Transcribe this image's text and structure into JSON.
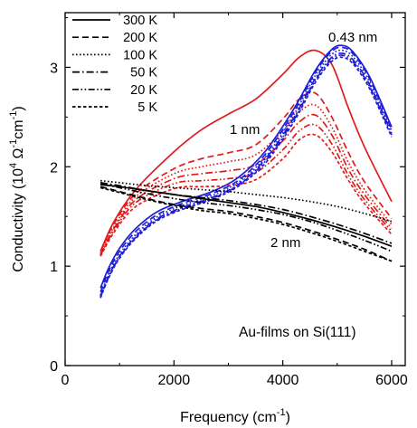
{
  "chart_data": {
    "type": "line",
    "xlabel_prefix": "Frequency (cm",
    "xlabel_exp": "-1",
    "xlabel_suffix": ")",
    "ylabel_main": "Conductivity (10",
    "ylabel_exp1": "4",
    "ylabel_mid": " Ω",
    "ylabel_exp2": "-1",
    "ylabel_cm": "cm",
    "ylabel_exp3": "-1",
    "ylabel_suffix": ")",
    "xlim": [
      0,
      6250
    ],
    "ylim": [
      0,
      3.55
    ],
    "xticks": [
      0,
      2000,
      4000,
      6000
    ],
    "yticks": [
      0,
      1,
      2,
      3
    ],
    "legend_position": "top-left",
    "legend": [
      {
        "label": "300 K",
        "dash": "solid"
      },
      {
        "label": "200 K",
        "dash": "dash"
      },
      {
        "label": "100 K",
        "dash": "dot"
      },
      {
        "label": "50 K",
        "dash": "dashdot"
      },
      {
        "label": "20 K",
        "dash": "dashdotdot"
      },
      {
        "label": "5 K",
        "dash": "shortdash"
      }
    ],
    "annotations": {
      "thick": "0.43 nm",
      "mid": "1 nm",
      "thin": "2 nm",
      "sample": "Au-films on Si(111)"
    },
    "colors": {
      "film_043nm": "#1f1fd6",
      "film_1nm": "#e01b1b",
      "film_2nm": "#000000"
    },
    "series": [
      {
        "name": "1 nm 300 K",
        "color": "#e01b1b",
        "dash": "solid",
        "x": [
          650,
          900,
          1300,
          2000,
          2500,
          3000,
          3500,
          4000,
          4300,
          4600,
          4900,
          5200,
          5500,
          6000
        ],
        "y": [
          1.15,
          1.45,
          1.77,
          2.15,
          2.37,
          2.53,
          2.68,
          2.93,
          3.1,
          3.17,
          3.03,
          2.6,
          2.2,
          1.65
        ]
      },
      {
        "name": "1 nm 200 K",
        "color": "#e01b1b",
        "dash": "dash",
        "x": [
          650,
          900,
          1300,
          2000,
          2500,
          3000,
          3500,
          4000,
          4300,
          4600,
          4900,
          5200,
          5500,
          6000
        ],
        "y": [
          1.15,
          1.43,
          1.73,
          1.98,
          2.08,
          2.14,
          2.22,
          2.48,
          2.68,
          2.74,
          2.5,
          2.15,
          1.85,
          1.48
        ]
      },
      {
        "name": "1 nm 100 K",
        "color": "#e01b1b",
        "dash": "dot",
        "x": [
          650,
          900,
          1300,
          2000,
          2500,
          3000,
          3500,
          4000,
          4300,
          4600,
          4900,
          5200,
          5500,
          6000
        ],
        "y": [
          1.13,
          1.4,
          1.7,
          1.93,
          2.0,
          2.05,
          2.12,
          2.36,
          2.55,
          2.62,
          2.4,
          2.05,
          1.77,
          1.42
        ]
      },
      {
        "name": "1 nm 50 K",
        "color": "#e01b1b",
        "dash": "dashdot",
        "x": [
          650,
          900,
          1300,
          2000,
          2500,
          3000,
          3500,
          4000,
          4300,
          4600,
          4900,
          5200,
          5500,
          6000
        ],
        "y": [
          1.12,
          1.38,
          1.67,
          1.88,
          1.93,
          1.96,
          2.02,
          2.26,
          2.45,
          2.52,
          2.32,
          1.98,
          1.72,
          1.38
        ]
      },
      {
        "name": "1 nm 20 K",
        "color": "#e01b1b",
        "dash": "dashdotdot",
        "x": [
          650,
          900,
          1300,
          2000,
          2500,
          3000,
          3500,
          4000,
          4300,
          4600,
          4900,
          5200,
          5500,
          6000
        ],
        "y": [
          1.11,
          1.36,
          1.64,
          1.83,
          1.86,
          1.88,
          1.94,
          2.17,
          2.36,
          2.42,
          2.23,
          1.92,
          1.67,
          1.35
        ]
      },
      {
        "name": "1 nm 5 K",
        "color": "#e01b1b",
        "dash": "shortdash",
        "x": [
          650,
          900,
          1300,
          2000,
          2500,
          3000,
          3500,
          4000,
          4300,
          4600,
          4900,
          5200,
          5500,
          6000
        ],
        "y": [
          1.1,
          1.34,
          1.6,
          1.78,
          1.8,
          1.81,
          1.87,
          2.08,
          2.27,
          2.32,
          2.15,
          1.87,
          1.63,
          1.32
        ]
      },
      {
        "name": "0.43 nm 300 K",
        "color": "#1f1fd6",
        "dash": "solid",
        "x": [
          650,
          800,
          1000,
          1300,
          1700,
          2200,
          2700,
          3200,
          3700,
          4200,
          4600,
          4900,
          5100,
          5300,
          5600,
          6000
        ],
        "y": [
          0.78,
          0.98,
          1.18,
          1.38,
          1.55,
          1.66,
          1.75,
          1.9,
          2.17,
          2.58,
          2.97,
          3.18,
          3.22,
          3.15,
          2.9,
          2.4
        ]
      },
      {
        "name": "0.43 nm 200 K",
        "color": "#1f1fd6",
        "dash": "dash",
        "x": [
          650,
          800,
          1000,
          1300,
          1700,
          2200,
          2700,
          3200,
          3700,
          4200,
          4600,
          4900,
          5100,
          5300,
          5600,
          6000
        ],
        "y": [
          0.74,
          0.95,
          1.15,
          1.35,
          1.52,
          1.64,
          1.73,
          1.87,
          2.14,
          2.55,
          2.95,
          3.16,
          3.2,
          3.13,
          2.88,
          2.38
        ]
      },
      {
        "name": "0.43 nm 100 K",
        "color": "#1f1fd6",
        "dash": "dot",
        "x": [
          650,
          800,
          1000,
          1300,
          1700,
          2200,
          2700,
          3200,
          3700,
          4200,
          4600,
          4900,
          5100,
          5300,
          5600,
          6000
        ],
        "y": [
          0.71,
          0.92,
          1.12,
          1.32,
          1.5,
          1.62,
          1.71,
          1.85,
          2.11,
          2.52,
          2.92,
          3.13,
          3.17,
          3.1,
          2.85,
          2.36
        ]
      },
      {
        "name": "0.43 nm 50 K",
        "color": "#1f1fd6",
        "dash": "dashdot",
        "x": [
          650,
          800,
          1000,
          1300,
          1700,
          2200,
          2700,
          3200,
          3700,
          4200,
          4600,
          4900,
          5100,
          5300,
          5600,
          6000
        ],
        "y": [
          0.7,
          0.9,
          1.1,
          1.3,
          1.48,
          1.6,
          1.69,
          1.83,
          2.09,
          2.49,
          2.89,
          3.1,
          3.14,
          3.07,
          2.82,
          2.34
        ]
      },
      {
        "name": "0.43 nm 20 K",
        "color": "#1f1fd6",
        "dash": "dashdotdot",
        "x": [
          650,
          800,
          1000,
          1300,
          1700,
          2200,
          2700,
          3200,
          3700,
          4200,
          4600,
          4900,
          5100,
          5300,
          5600,
          6000
        ],
        "y": [
          0.69,
          0.89,
          1.09,
          1.29,
          1.47,
          1.59,
          1.68,
          1.82,
          2.07,
          2.47,
          2.87,
          3.08,
          3.12,
          3.05,
          2.8,
          2.32
        ]
      },
      {
        "name": "0.43 nm 5 K",
        "color": "#1f1fd6",
        "dash": "shortdash",
        "x": [
          650,
          800,
          1000,
          1300,
          1700,
          2200,
          2700,
          3200,
          3700,
          4200,
          4600,
          4900,
          5100,
          5300,
          5600,
          6000
        ],
        "y": [
          0.68,
          0.88,
          1.08,
          1.28,
          1.46,
          1.58,
          1.67,
          1.81,
          2.05,
          2.45,
          2.85,
          3.06,
          3.1,
          3.03,
          2.78,
          2.3
        ]
      },
      {
        "name": "2 nm 300 K",
        "color": "#000000",
        "dash": "solid",
        "x": [
          650,
          1000,
          1500,
          2000,
          2500,
          3000,
          3500,
          4000,
          4500,
          5000,
          5500,
          6000
        ],
        "y": [
          1.82,
          1.8,
          1.76,
          1.72,
          1.68,
          1.64,
          1.6,
          1.54,
          1.47,
          1.39,
          1.3,
          1.2
        ]
      },
      {
        "name": "2 nm 200 K",
        "color": "#000000",
        "dash": "dash",
        "x": [
          650,
          1000,
          1500,
          2000,
          2500,
          3000,
          3500,
          4000,
          4500,
          5000,
          5500,
          6000
        ],
        "y": [
          1.8,
          1.75,
          1.68,
          1.62,
          1.58,
          1.55,
          1.5,
          1.44,
          1.36,
          1.27,
          1.17,
          1.05
        ]
      },
      {
        "name": "2 nm 100 K",
        "color": "#000000",
        "dash": "dot",
        "x": [
          650,
          1000,
          1500,
          2000,
          2500,
          3000,
          3500,
          4000,
          4500,
          5000,
          5500,
          6000
        ],
        "y": [
          1.86,
          1.84,
          1.81,
          1.79,
          1.77,
          1.75,
          1.72,
          1.69,
          1.65,
          1.6,
          1.53,
          1.45
        ]
      },
      {
        "name": "2 nm 50 K",
        "color": "#000000",
        "dash": "dashdot",
        "x": [
          650,
          1000,
          1500,
          2000,
          2500,
          3000,
          3500,
          4000,
          4500,
          5000,
          5500,
          6000
        ],
        "y": [
          1.84,
          1.81,
          1.76,
          1.72,
          1.69,
          1.66,
          1.62,
          1.57,
          1.5,
          1.42,
          1.33,
          1.23
        ]
      },
      {
        "name": "2 nm 20 K",
        "color": "#000000",
        "dash": "dashdotdot",
        "x": [
          650,
          1000,
          1500,
          2000,
          2500,
          3000,
          3500,
          4000,
          4500,
          5000,
          5500,
          6000
        ],
        "y": [
          1.83,
          1.79,
          1.73,
          1.68,
          1.64,
          1.61,
          1.57,
          1.52,
          1.45,
          1.36,
          1.26,
          1.15
        ]
      },
      {
        "name": "2 nm 5 K",
        "color": "#000000",
        "dash": "shortdash",
        "x": [
          650,
          1000,
          1500,
          2000,
          2500,
          3000,
          3500,
          4000,
          4500,
          5000,
          5500,
          6000
        ],
        "y": [
          1.79,
          1.74,
          1.67,
          1.61,
          1.56,
          1.53,
          1.48,
          1.42,
          1.34,
          1.25,
          1.15,
          1.05
        ]
      }
    ]
  }
}
